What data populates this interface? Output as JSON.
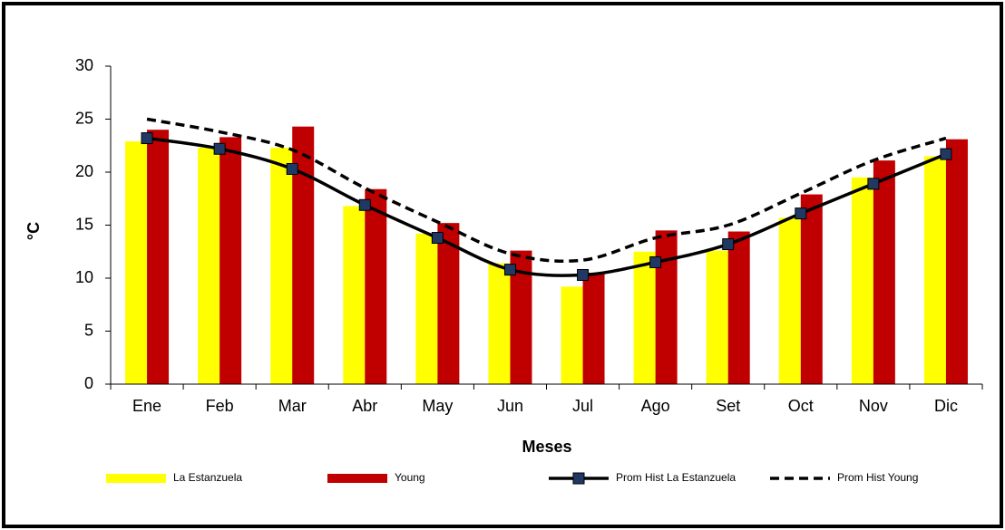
{
  "chart_data": {
    "type": "bar_line",
    "x_label": "Meses",
    "y_label": "°C",
    "categories": [
      "Ene",
      "Feb",
      "Mar",
      "Abr",
      "May",
      "Jun",
      "Jul",
      "Ago",
      "Set",
      "Oct",
      "Nov",
      "Dic"
    ],
    "series": [
      {
        "name": "La Estanzuela",
        "type": "bar",
        "color": "#ffff00",
        "values": [
          22.9,
          22.3,
          22.3,
          16.8,
          14.2,
          11.4,
          9.2,
          12.5,
          12.6,
          15.7,
          19.5,
          21.5
        ]
      },
      {
        "name": "Young",
        "type": "bar",
        "color": "#c00000",
        "values": [
          24.0,
          23.3,
          24.3,
          18.4,
          15.2,
          12.6,
          10.5,
          14.5,
          14.4,
          17.9,
          21.1,
          23.1
        ]
      },
      {
        "name": "Prom Hist La Estanzuela",
        "type": "line",
        "color": "#000000",
        "marker": "square",
        "marker_color": "#1f3864",
        "values": [
          23.2,
          22.2,
          20.3,
          16.9,
          13.8,
          10.8,
          10.3,
          11.5,
          13.2,
          16.1,
          18.9,
          21.7
        ]
      },
      {
        "name": "Prom Hist Young",
        "type": "line",
        "color": "#000000",
        "dashed": true,
        "values": [
          25.0,
          23.8,
          22.1,
          18.5,
          15.3,
          12.3,
          11.7,
          13.8,
          15.0,
          18.0,
          21.1,
          23.2
        ]
      }
    ],
    "ylim": [
      0,
      30
    ],
    "yticks": [
      0,
      5,
      10,
      15,
      20,
      25,
      30
    ],
    "grid": false,
    "legend": "bottom"
  }
}
